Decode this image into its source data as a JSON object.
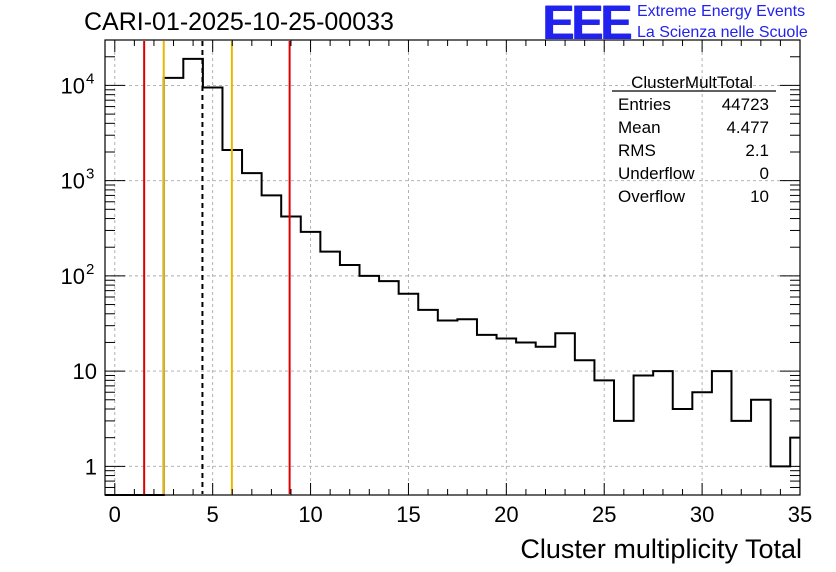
{
  "header": {
    "run_title": "CARI-01-2025-10-25-00033",
    "logo_text": "EEE",
    "logo_line1": "Extreme Energy Events",
    "logo_line2": "La Scienza nelle Scuole",
    "logo_color": "#2222ee"
  },
  "stats": {
    "title": "ClusterMultTotal",
    "rows": [
      {
        "label": "Entries",
        "value": "44723"
      },
      {
        "label": "Mean",
        "value": "4.477"
      },
      {
        "label": "RMS",
        "value": "2.1"
      },
      {
        "label": "Underflow",
        "value": "0"
      },
      {
        "label": "Overflow",
        "value": "10"
      }
    ]
  },
  "chart_data": {
    "type": "histogram",
    "title": "CARI-01-2025-10-25-00033",
    "xlabel": "Cluster multiplicity Total",
    "ylabel": "",
    "xlim": [
      -0.5,
      35.0
    ],
    "ylim": [
      0.5,
      30000
    ],
    "yscale": "log",
    "grid": true,
    "bins": [
      {
        "x": 0,
        "count": 0
      },
      {
        "x": 1,
        "count": 0
      },
      {
        "x": 2,
        "count": 0
      },
      {
        "x": 3,
        "count": 12000
      },
      {
        "x": 4,
        "count": 19000
      },
      {
        "x": 5,
        "count": 9500
      },
      {
        "x": 6,
        "count": 2100
      },
      {
        "x": 7,
        "count": 1200
      },
      {
        "x": 8,
        "count": 700
      },
      {
        "x": 9,
        "count": 420
      },
      {
        "x": 10,
        "count": 290
      },
      {
        "x": 11,
        "count": 180
      },
      {
        "x": 12,
        "count": 130
      },
      {
        "x": 13,
        "count": 100
      },
      {
        "x": 14,
        "count": 88
      },
      {
        "x": 15,
        "count": 65
      },
      {
        "x": 16,
        "count": 44
      },
      {
        "x": 17,
        "count": 34
      },
      {
        "x": 18,
        "count": 35
      },
      {
        "x": 19,
        "count": 24
      },
      {
        "x": 20,
        "count": 22
      },
      {
        "x": 21,
        "count": 20
      },
      {
        "x": 22,
        "count": 18
      },
      {
        "x": 23,
        "count": 25
      },
      {
        "x": 24,
        "count": 13
      },
      {
        "x": 25,
        "count": 8
      },
      {
        "x": 26,
        "count": 3
      },
      {
        "x": 27,
        "count": 9
      },
      {
        "x": 28,
        "count": 10
      },
      {
        "x": 29,
        "count": 4
      },
      {
        "x": 30,
        "count": 6
      },
      {
        "x": 31,
        "count": 10
      },
      {
        "x": 32,
        "count": 3
      },
      {
        "x": 33,
        "count": 5
      },
      {
        "x": 34,
        "count": 1
      },
      {
        "x": 35,
        "count": 2
      }
    ],
    "bin_width": 1,
    "x_ticks": [
      0,
      5,
      10,
      15,
      20,
      25,
      30,
      35
    ],
    "y_ticks": [
      {
        "value": 1,
        "label": "1"
      },
      {
        "value": 10,
        "label": "10"
      },
      {
        "value": 100,
        "label": "10",
        "exp": "2"
      },
      {
        "value": 1000,
        "label": "10",
        "exp": "3"
      },
      {
        "value": 10000,
        "label": "10",
        "exp": "4"
      }
    ],
    "vertical_lines": [
      {
        "x": 1.5,
        "color": "#dd0000",
        "style": "solid"
      },
      {
        "x": 2.5,
        "color": "#e8b800",
        "style": "solid"
      },
      {
        "x": 4.477,
        "color": "#000000",
        "style": "dashed"
      },
      {
        "x": 5.98,
        "color": "#e8b800",
        "style": "solid"
      },
      {
        "x": 8.93,
        "color": "#dd0000",
        "style": "solid"
      }
    ]
  }
}
